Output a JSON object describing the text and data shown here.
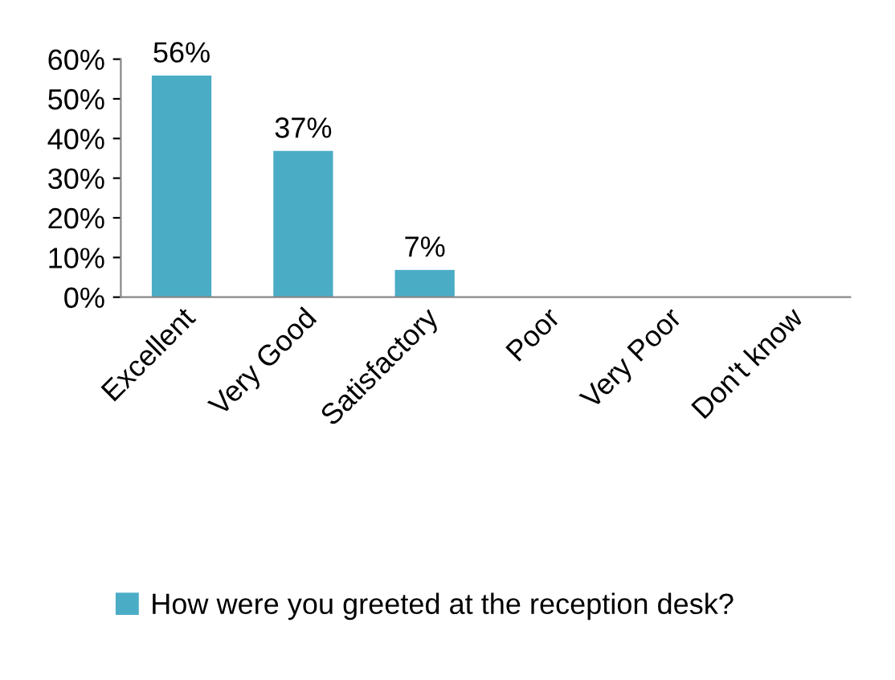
{
  "chart_data": {
    "type": "bar",
    "categories": [
      "Excellent",
      "Very Good",
      "Satisfactory",
      "Poor",
      "Very Poor",
      "Don't know"
    ],
    "series": [
      {
        "name": "How were you greeted at the reception desk?",
        "color": "#4bacc6",
        "values": [
          56,
          37,
          7,
          null,
          null,
          null
        ],
        "value_labels": [
          "56%",
          "37%",
          "7%",
          null,
          null,
          null
        ]
      }
    ],
    "ylim": [
      0,
      60
    ],
    "yticks": [
      {
        "value": 0,
        "label": "0%"
      },
      {
        "value": 10,
        "label": "10%"
      },
      {
        "value": 20,
        "label": "20%"
      },
      {
        "value": 30,
        "label": "30%"
      },
      {
        "value": 40,
        "label": "40%"
      },
      {
        "value": 50,
        "label": "50%"
      },
      {
        "value": 60,
        "label": "60%"
      }
    ],
    "grid": false,
    "legend": "bottom"
  }
}
